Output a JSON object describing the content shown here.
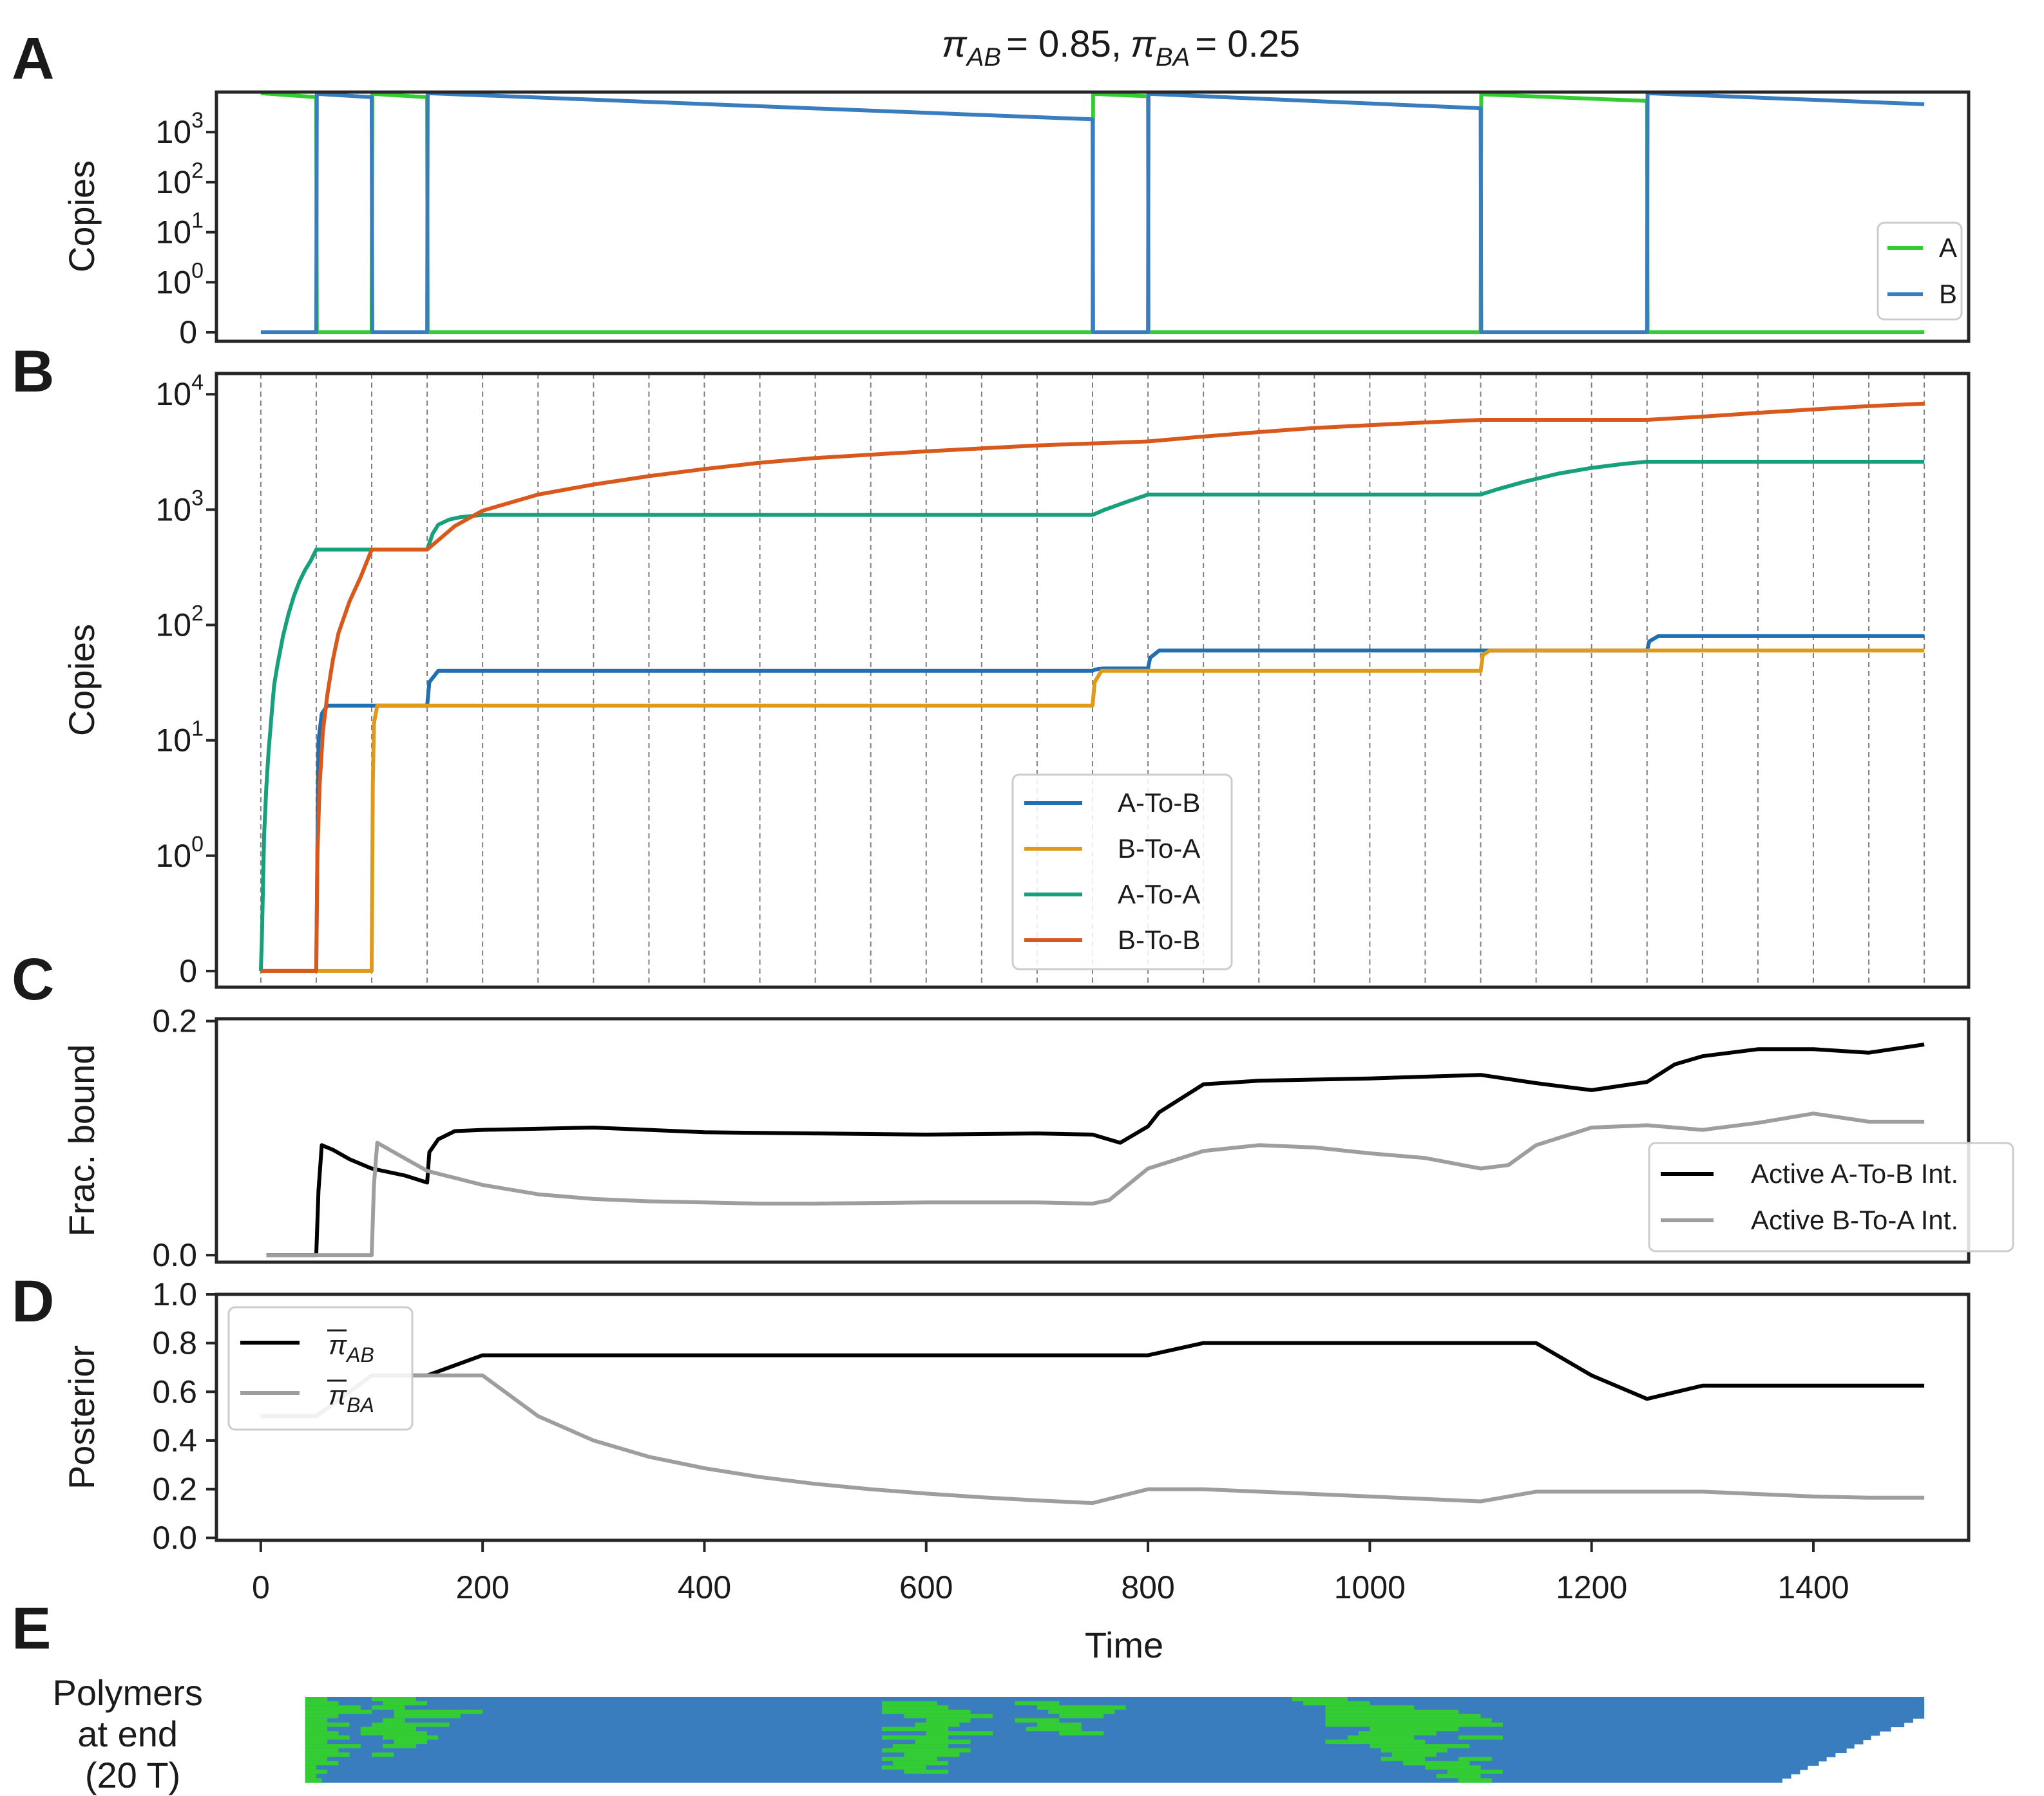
{
  "title": {
    "pi": "π",
    "ab_sub": "AB",
    "ab_value": "= 0.85,",
    "ba_sub": "BA",
    "ba_value": "= 0.25"
  },
  "panel_letters": [
    "A",
    "B",
    "C",
    "D",
    "E"
  ],
  "colors": {
    "A": "#33cc33",
    "B": "#3a7dbe",
    "A_to_B": "#1f6fb2",
    "B_to_A": "#e09a1a",
    "A_to_A": "#17a07c",
    "B_to_B": "#d9581b",
    "active_AB": "#000000",
    "active_BA": "#9e9e9e",
    "pi_AB": "#000000",
    "pi_BA": "#9e9e9e"
  },
  "shared_x": {
    "label": "Time",
    "range": [
      -40,
      1540
    ],
    "ticks": [
      0,
      200,
      400,
      600,
      800,
      1000,
      1200,
      1400
    ]
  },
  "chart_data": [
    {
      "panel": "A",
      "type": "line",
      "ylabel": "Copies",
      "yscale": "symlog",
      "yticks": [
        {
          "base": "0",
          "exp": ""
        },
        {
          "base": "10",
          "exp": "0"
        },
        {
          "base": "10",
          "exp": "1"
        },
        {
          "base": "10",
          "exp": "2"
        },
        {
          "base": "10",
          "exp": "3"
        }
      ],
      "legend_position": "lower-right",
      "series": [
        {
          "name": "A",
          "color_key": "A",
          "x": [
            0,
            50,
            50.5,
            100,
            100.5,
            150,
            150.5,
            750,
            750.5,
            800,
            800.5,
            1100,
            1100.5,
            1250,
            1250.5,
            1500
          ],
          "y": [
            6000,
            5000,
            0,
            0,
            5800,
            5000,
            0,
            0,
            5800,
            5200,
            0,
            0,
            5700,
            4200,
            0,
            0
          ]
        },
        {
          "name": "B",
          "color_key": "B",
          "x": [
            0,
            50,
            50.5,
            100,
            100.5,
            150,
            150.5,
            750,
            750.5,
            800,
            800.5,
            1100,
            1100.5,
            1250,
            1250.5,
            1500
          ],
          "y": [
            0,
            0,
            5800,
            5000,
            0,
            0,
            6000,
            1800,
            0,
            0,
            5800,
            3000,
            0,
            0,
            6000,
            3600
          ]
        }
      ]
    },
    {
      "panel": "B",
      "type": "line",
      "ylabel": "Copies",
      "yscale": "symlog",
      "yticks": [
        {
          "base": "0",
          "exp": ""
        },
        {
          "base": "10",
          "exp": "0"
        },
        {
          "base": "10",
          "exp": "1"
        },
        {
          "base": "10",
          "exp": "2"
        },
        {
          "base": "10",
          "exp": "3"
        },
        {
          "base": "10",
          "exp": "4"
        }
      ],
      "vlines": [
        0,
        50,
        100,
        150,
        200,
        250,
        300,
        350,
        400,
        450,
        500,
        550,
        600,
        650,
        700,
        750,
        800,
        850,
        900,
        950,
        1000,
        1050,
        1100,
        1150,
        1200,
        1250,
        1300,
        1350,
        1400,
        1450,
        1500
      ],
      "legend_position": "lower-center",
      "series": [
        {
          "name": "A-To-B",
          "color_key": "A_to_B",
          "x": [
            0,
            50,
            52,
            55,
            60,
            150,
            152,
            160,
            750,
            752,
            760,
            800,
            802,
            810,
            1100,
            1102,
            1110,
            1250,
            1252,
            1260,
            1500
          ],
          "y": [
            0,
            0,
            10,
            17,
            20,
            20,
            32,
            40,
            40,
            41,
            42,
            42,
            52,
            60,
            60,
            60,
            60,
            60,
            72,
            80,
            80
          ]
        },
        {
          "name": "B-To-A",
          "color_key": "B_to_A",
          "x": [
            0,
            100,
            101,
            102,
            105,
            750,
            752,
            758,
            800,
            1100,
            1102,
            1108,
            1250,
            1500
          ],
          "y": [
            0,
            0,
            4,
            14,
            20,
            20,
            32,
            40,
            40,
            40,
            55,
            60,
            60,
            60
          ]
        },
        {
          "name": "A-To-A",
          "color_key": "A_to_A",
          "x": [
            0,
            1,
            3,
            5,
            7,
            10,
            12,
            15,
            20,
            25,
            30,
            35,
            40,
            45,
            50,
            150,
            155,
            160,
            170,
            180,
            190,
            200,
            750,
            760,
            780,
            800,
            1100,
            1115,
            1140,
            1170,
            1200,
            1230,
            1250,
            1500
          ],
          "y": [
            0,
            0.3,
            1.5,
            4,
            8,
            18,
            30,
            45,
            80,
            125,
            180,
            240,
            300,
            360,
            450,
            450,
            620,
            740,
            820,
            860,
            880,
            900,
            900,
            990,
            1160,
            1350,
            1350,
            1500,
            1750,
            2050,
            2300,
            2500,
            2600,
            2600
          ]
        },
        {
          "name": "B-To-B",
          "color_key": "B_to_B",
          "x": [
            0,
            50,
            51,
            53,
            56,
            60,
            65,
            70,
            80,
            90,
            100,
            150,
            175,
            200,
            250,
            300,
            350,
            400,
            450,
            500,
            600,
            700,
            800,
            850,
            900,
            950,
            1000,
            1050,
            1100,
            1250,
            1300,
            1350,
            1400,
            1450,
            1500
          ],
          "y": [
            0,
            0,
            1,
            4,
            12,
            25,
            50,
            85,
            160,
            260,
            450,
            450,
            720,
            980,
            1350,
            1650,
            1950,
            2250,
            2550,
            2800,
            3200,
            3600,
            3900,
            4300,
            4700,
            5100,
            5400,
            5700,
            6000,
            6000,
            6400,
            6900,
            7400,
            7900,
            8300
          ]
        }
      ]
    },
    {
      "panel": "C",
      "type": "line",
      "ylabel": "Frac. bound",
      "yrange": [
        -0.006,
        0.202
      ],
      "yticks": [
        "0.0",
        "0.2"
      ],
      "ytick_values": [
        0,
        0.2
      ],
      "legend_position": "lower-right",
      "series": [
        {
          "name": "Active A-To-B Int.",
          "color_key": "active_AB",
          "x": [
            5,
            50,
            52,
            55,
            65,
            80,
            100,
            130,
            150,
            152,
            160,
            175,
            200,
            300,
            400,
            500,
            600,
            700,
            750,
            775,
            800,
            810,
            850,
            900,
            1000,
            1100,
            1150,
            1200,
            1250,
            1275,
            1300,
            1350,
            1400,
            1450,
            1500
          ],
          "y": [
            0,
            0,
            0.055,
            0.094,
            0.09,
            0.082,
            0.074,
            0.068,
            0.062,
            0.088,
            0.099,
            0.106,
            0.107,
            0.109,
            0.105,
            0.104,
            0.103,
            0.104,
            0.103,
            0.096,
            0.11,
            0.122,
            0.146,
            0.149,
            0.151,
            0.154,
            0.147,
            0.141,
            0.148,
            0.163,
            0.17,
            0.176,
            0.176,
            0.173,
            0.18
          ]
        },
        {
          "name": "Active B-To-A Int.",
          "color_key": "active_BA",
          "x": [
            5,
            100,
            102,
            105,
            120,
            150,
            200,
            250,
            300,
            350,
            400,
            450,
            500,
            600,
            700,
            750,
            765,
            800,
            850,
            900,
            950,
            1000,
            1050,
            1100,
            1125,
            1150,
            1200,
            1250,
            1300,
            1350,
            1400,
            1450,
            1500
          ],
          "y": [
            0,
            0,
            0.06,
            0.096,
            0.088,
            0.072,
            0.06,
            0.052,
            0.048,
            0.046,
            0.045,
            0.044,
            0.044,
            0.045,
            0.045,
            0.044,
            0.047,
            0.074,
            0.089,
            0.094,
            0.092,
            0.087,
            0.083,
            0.074,
            0.077,
            0.094,
            0.109,
            0.111,
            0.107,
            0.113,
            0.121,
            0.114,
            0.114
          ]
        }
      ]
    },
    {
      "panel": "D",
      "type": "line",
      "ylabel": "Posterior",
      "yrange": [
        -0.01,
        1.0
      ],
      "yticks": [
        "0.0",
        "0.2",
        "0.4",
        "0.6",
        "0.8",
        "1.0"
      ],
      "ytick_values": [
        0,
        0.2,
        0.4,
        0.6,
        0.8,
        1.0
      ],
      "legend_position": "upper-left",
      "series": [
        {
          "name": "π̂ AB",
          "legend_sub": "AB",
          "color_key": "pi_AB",
          "x": [
            0,
            50,
            100,
            150,
            200,
            250,
            300,
            350,
            400,
            450,
            500,
            550,
            600,
            650,
            700,
            750,
            800,
            850,
            900,
            950,
            1000,
            1050,
            1100,
            1150,
            1200,
            1250,
            1300,
            1350,
            1400,
            1450,
            1500
          ],
          "y": [
            0.5,
            0.5,
            0.667,
            0.667,
            0.75,
            0.75,
            0.75,
            0.75,
            0.75,
            0.75,
            0.75,
            0.75,
            0.75,
            0.75,
            0.75,
            0.75,
            0.75,
            0.8,
            0.8,
            0.8,
            0.8,
            0.8,
            0.8,
            0.8,
            0.667,
            0.571,
            0.625,
            0.625,
            0.625,
            0.625,
            0.625
          ]
        },
        {
          "name": "π̂ BA",
          "legend_sub": "BA",
          "color_key": "pi_BA",
          "x": [
            0,
            50,
            100,
            150,
            200,
            250,
            300,
            350,
            400,
            450,
            500,
            550,
            600,
            650,
            700,
            750,
            800,
            850,
            900,
            950,
            1000,
            1050,
            1100,
            1150,
            1200,
            1250,
            1300,
            1350,
            1400,
            1450,
            1500
          ],
          "y": [
            0.5,
            0.5,
            0.667,
            0.667,
            0.667,
            0.5,
            0.4,
            0.333,
            0.286,
            0.25,
            0.222,
            0.2,
            0.182,
            0.167,
            0.154,
            0.143,
            0.2,
            0.2,
            0.19,
            0.18,
            0.17,
            0.16,
            0.15,
            0.19,
            0.19,
            0.19,
            0.19,
            0.18,
            0.17,
            0.165,
            0.165
          ]
        }
      ]
    },
    {
      "panel": "E",
      "type": "heatmap",
      "row_label": "Polymers at end (20 T)",
      "row_label_lines": [
        "Polymers",
        "at end",
        "(20 T)"
      ],
      "x_range_time": [
        40,
        1500
      ],
      "rows": 20,
      "polymer_end_times": [
        1500,
        1500,
        1500,
        1500,
        1500,
        1490,
        1482,
        1470,
        1460,
        1452,
        1445,
        1437,
        1430,
        1420,
        1412,
        1405,
        1395,
        1388,
        1380,
        1372
      ],
      "a_segments": [
        [
          [
            40,
            60
          ],
          [
            100,
            140
          ],
          [
            930,
            980
          ]
        ],
        [
          [
            40,
            70
          ],
          [
            110,
            150
          ],
          [
            560,
            610
          ],
          [
            680,
            720
          ],
          [
            940,
            1000
          ]
        ],
        [
          [
            40,
            90
          ],
          [
            100,
            130
          ],
          [
            560,
            620
          ],
          [
            700,
            780
          ],
          [
            960,
            1040
          ]
        ],
        [
          [
            40,
            100
          ],
          [
            120,
            200
          ],
          [
            560,
            640
          ],
          [
            710,
            770
          ],
          [
            960,
            1080
          ]
        ],
        [
          [
            40,
            70
          ],
          [
            120,
            180
          ],
          [
            580,
            660
          ],
          [
            720,
            760
          ],
          [
            960,
            1100
          ]
        ],
        [
          [
            40,
            60
          ],
          [
            110,
            130
          ],
          [
            600,
            640
          ],
          [
            680,
            720
          ],
          [
            960,
            1110
          ]
        ],
        [
          [
            40,
            80
          ],
          [
            100,
            170
          ],
          [
            590,
            630
          ],
          [
            700,
            740
          ],
          [
            960,
            1120
          ]
        ],
        [
          [
            40,
            60
          ],
          [
            90,
            140
          ],
          [
            560,
            620
          ],
          [
            690,
            740
          ],
          [
            1000,
            1080
          ]
        ],
        [
          [
            40,
            70
          ],
          [
            90,
            150
          ],
          [
            600,
            660
          ],
          [
            720,
            760
          ],
          [
            990,
            1060
          ]
        ],
        [
          [
            40,
            80
          ],
          [
            110,
            160
          ],
          [
            560,
            620
          ],
          [
            980,
            1040
          ],
          [
            1080,
            1120
          ]
        ],
        [
          [
            40,
            60
          ],
          [
            120,
            150
          ],
          [
            590,
            640
          ],
          [
            960,
            1050
          ]
        ],
        [
          [
            40,
            90
          ],
          [
            110,
            140
          ],
          [
            570,
            620
          ],
          [
            1000,
            1090
          ]
        ],
        [
          [
            40,
            70
          ],
          [
            560,
            640
          ],
          [
            1010,
            1070
          ]
        ],
        [
          [
            40,
            80
          ],
          [
            100,
            120
          ],
          [
            580,
            630
          ],
          [
            1020,
            1060
          ]
        ],
        [
          [
            40,
            60
          ],
          [
            560,
            610
          ],
          [
            1010,
            1050
          ],
          [
            1080,
            1110
          ]
        ],
        [
          [
            40,
            70
          ],
          [
            570,
            620
          ],
          [
            1030,
            1090
          ]
        ],
        [
          [
            40,
            50
          ],
          [
            560,
            600
          ],
          [
            1050,
            1100
          ]
        ],
        [
          [
            40,
            60
          ],
          [
            580,
            620
          ],
          [
            1070,
            1120
          ]
        ],
        [
          [
            40,
            50
          ],
          [
            1060,
            1100
          ]
        ],
        [
          [
            40,
            55
          ],
          [
            1080,
            1110
          ]
        ]
      ]
    }
  ]
}
